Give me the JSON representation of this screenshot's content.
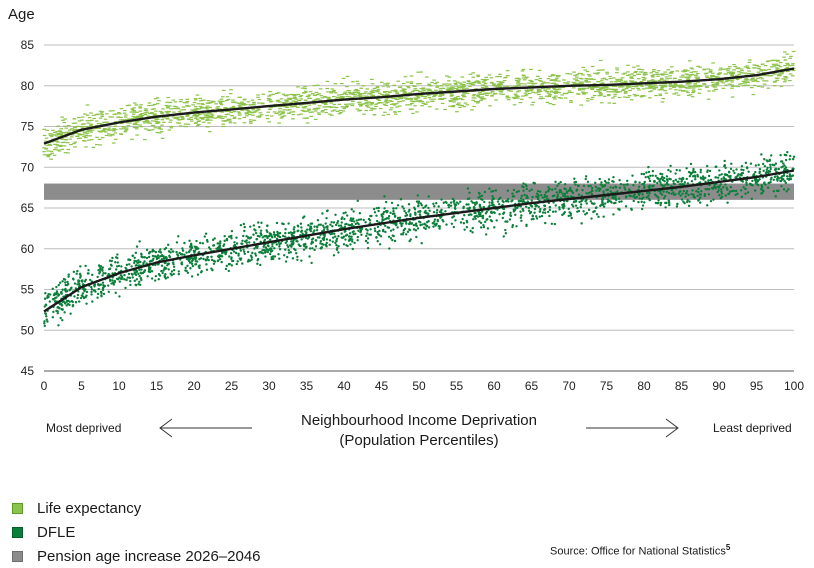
{
  "chart_data": {
    "type": "scatter",
    "ylabel": "Age",
    "xlabel_line1": "Neighbourhood Income Deprivation",
    "xlabel_line2": "(Population Percentiles)",
    "annotation_left": "Most deprived",
    "annotation_right": "Least deprived",
    "source_text": "Source: Office for National Statistics",
    "source_note": "5",
    "xlim": [
      0,
      100
    ],
    "ylim": [
      45,
      85
    ],
    "xticks": [
      0,
      5,
      10,
      15,
      20,
      25,
      30,
      35,
      40,
      45,
      50,
      55,
      60,
      65,
      70,
      75,
      80,
      85,
      90,
      95,
      100
    ],
    "yticks": [
      45,
      50,
      55,
      60,
      65,
      70,
      75,
      80,
      85
    ],
    "grid": "horizontal",
    "legend_position": "bottom-left",
    "band": {
      "name": "Pension age increase 2026–2046",
      "y_from": 66,
      "y_to": 68,
      "color": "#8c8c8c"
    },
    "series": [
      {
        "name": "Life expectancy",
        "color": "#8cc34a",
        "marker": "dash",
        "trend_x": [
          0,
          5,
          10,
          15,
          20,
          25,
          30,
          35,
          40,
          45,
          50,
          55,
          60,
          65,
          70,
          75,
          80,
          85,
          90,
          95,
          100
        ],
        "trend_y": [
          72.9,
          74.6,
          75.5,
          76.2,
          76.7,
          77.1,
          77.5,
          77.9,
          78.3,
          78.6,
          79.0,
          79.3,
          79.6,
          79.8,
          80.0,
          80.1,
          80.3,
          80.5,
          80.8,
          81.3,
          82.1
        ],
        "spread": 1.4
      },
      {
        "name": "DFLE",
        "color": "#0b7f3a",
        "marker": "dot",
        "trend_x": [
          0,
          5,
          10,
          15,
          20,
          25,
          30,
          35,
          40,
          45,
          50,
          55,
          60,
          65,
          70,
          75,
          80,
          85,
          90,
          95,
          100
        ],
        "trend_y": [
          52.3,
          55.3,
          57.0,
          58.3,
          59.2,
          60.0,
          60.8,
          61.6,
          62.4,
          63.1,
          63.8,
          64.4,
          65.0,
          65.6,
          66.1,
          66.6,
          67.1,
          67.6,
          68.2,
          68.8,
          69.6
        ],
        "spread": 1.7
      }
    ]
  }
}
